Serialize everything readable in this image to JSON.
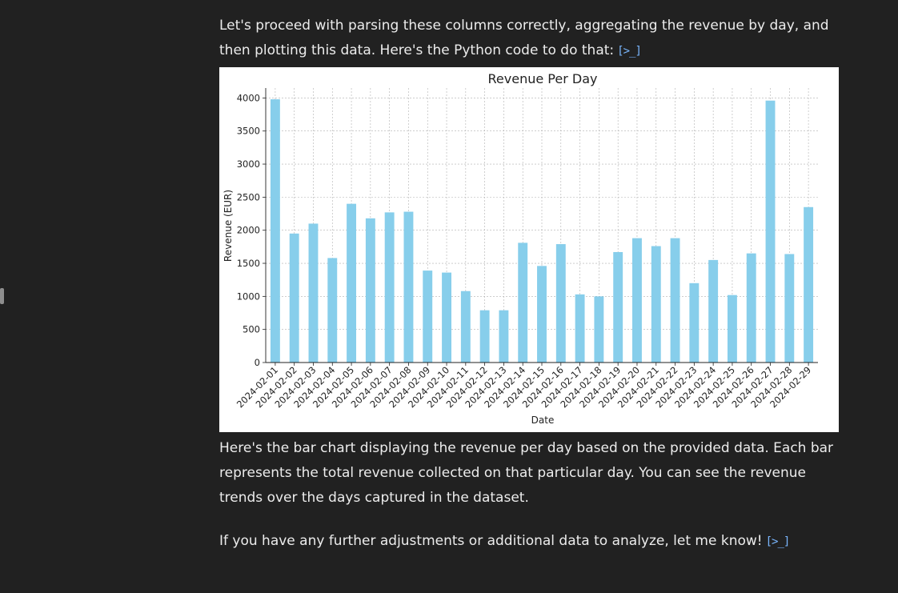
{
  "messages": {
    "intro_text": "Let's proceed with parsing these columns correctly, aggregating the revenue by day, and then plotting this data. Here's the Python code to do that:",
    "description_text": "Here's the bar chart displaying the revenue per day based on the provided data. Each bar represents the total revenue collected on that particular day. You can see the revenue trends over the days captured in the dataset.",
    "followup_text": "If you have any further adjustments or additional data to analyze, let me know!",
    "code_link_icon": "[>_]"
  },
  "colors": {
    "background": "#212121",
    "text": "#ececec",
    "link": "#7ab7ff",
    "bar": "#87ceeb"
  },
  "chart_data": {
    "type": "bar",
    "title": "Revenue Per Day",
    "xlabel": "Date",
    "ylabel": "Revenue (EUR)",
    "ylim": [
      0,
      4150
    ],
    "yticks": [
      0,
      500,
      1000,
      1500,
      2000,
      2500,
      3000,
      3500,
      4000
    ],
    "grid": true,
    "categories": [
      "2024-02-01",
      "2024-02-02",
      "2024-02-03",
      "2024-02-04",
      "2024-02-05",
      "2024-02-06",
      "2024-02-07",
      "2024-02-08",
      "2024-02-09",
      "2024-02-10",
      "2024-02-11",
      "2024-02-12",
      "2024-02-13",
      "2024-02-14",
      "2024-02-15",
      "2024-02-16",
      "2024-02-17",
      "2024-02-18",
      "2024-02-19",
      "2024-02-20",
      "2024-02-21",
      "2024-02-22",
      "2024-02-23",
      "2024-02-24",
      "2024-02-25",
      "2024-02-26",
      "2024-02-27",
      "2024-02-28",
      "2024-02-29"
    ],
    "values": [
      3980,
      1950,
      2100,
      1580,
      2400,
      2180,
      2270,
      2280,
      1390,
      1360,
      1080,
      790,
      790,
      1810,
      1460,
      1790,
      1030,
      1000,
      1670,
      1880,
      1760,
      1880,
      1200,
      1550,
      1020,
      1650,
      3960,
      1640,
      2350
    ]
  }
}
